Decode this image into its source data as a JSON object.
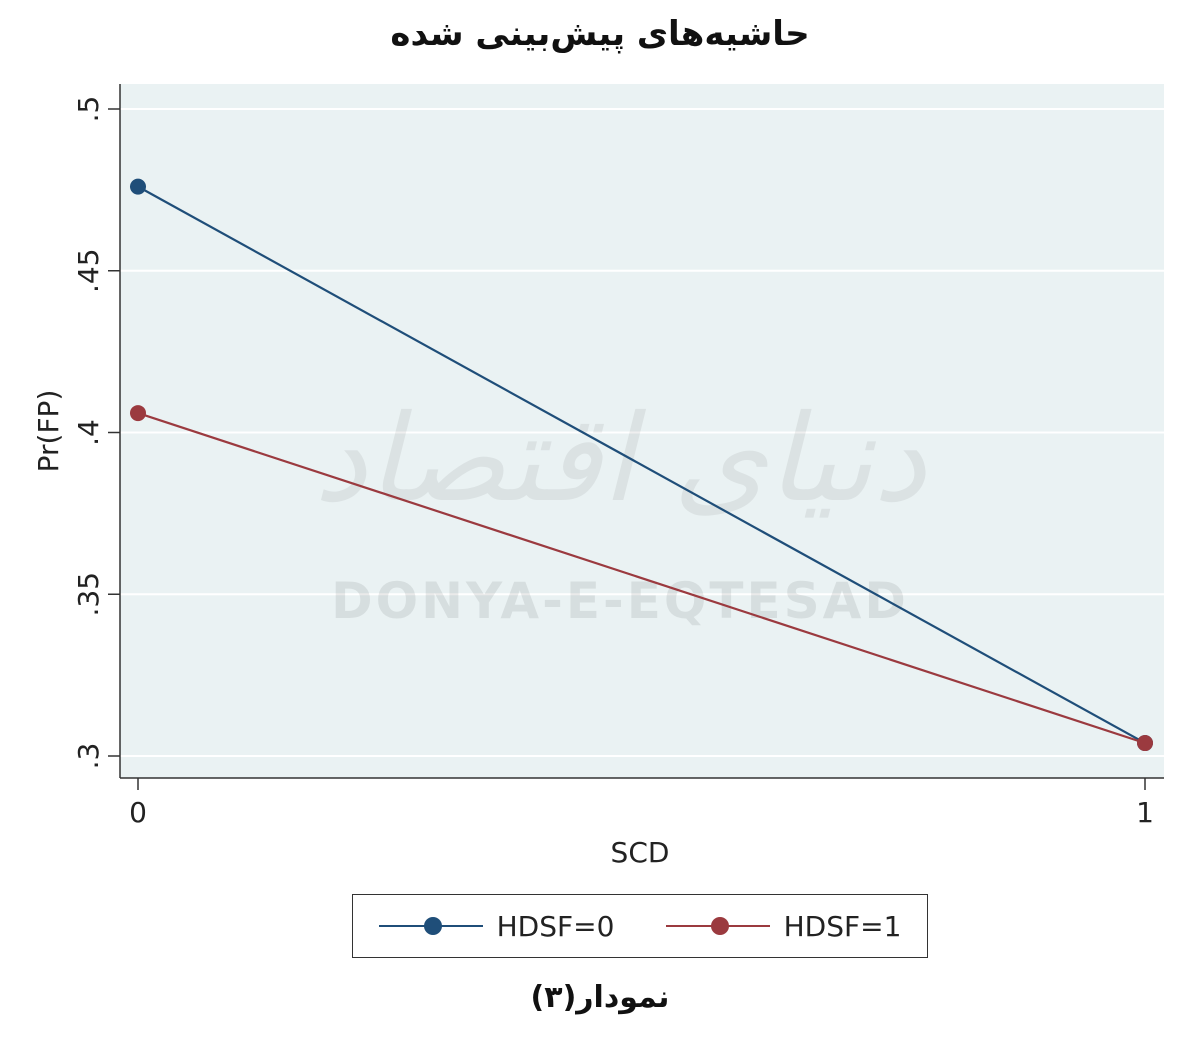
{
  "chart_data": {
    "type": "line",
    "title": "حاشیه‌های پیش‌بینی شده",
    "xlabel": "SCD",
    "ylabel": "Pr(FP)",
    "x": [
      0,
      1
    ],
    "x_tick_labels": [
      "0",
      "1"
    ],
    "ylim": [
      0.3,
      0.5
    ],
    "y_ticks": [
      0.3,
      0.35,
      0.4,
      0.45,
      0.5
    ],
    "y_tick_labels": [
      ".3",
      ".35",
      ".4",
      ".45",
      ".5"
    ],
    "series": [
      {
        "name": "HDSF=0",
        "color": "#1f4e79",
        "values": [
          0.476,
          0.304
        ]
      },
      {
        "name": "HDSF=1",
        "color": "#9b3a3f",
        "values": [
          0.406,
          0.304
        ]
      }
    ],
    "grid": true,
    "legend_position": "bottom",
    "background": "#eaf2f3"
  },
  "watermark": {
    "persian": "دنیای اقتصاد",
    "latin": "DONYA-E-EQTESAD"
  },
  "caption": "نمودار(۳)"
}
